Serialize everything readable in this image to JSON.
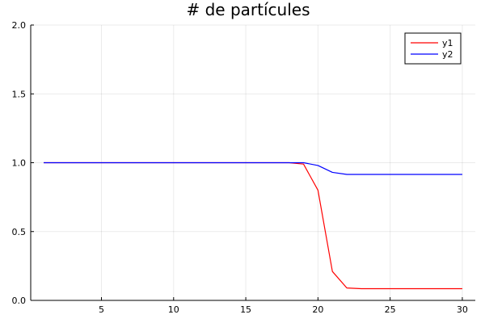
{
  "chart_data": {
    "type": "line",
    "title": "# de partícules",
    "xlabel": "",
    "ylabel": "",
    "xlim": [
      0.1,
      30.9
    ],
    "ylim": [
      0,
      2
    ],
    "xticks": [
      5,
      10,
      15,
      20,
      25,
      30
    ],
    "yticks": [
      0.0,
      0.5,
      1.0,
      1.5,
      2.0
    ],
    "xtick_labels": [
      "5",
      "10",
      "15",
      "20",
      "25",
      "30"
    ],
    "ytick_labels": [
      "0.0",
      "0.5",
      "1.0",
      "1.5",
      "2.0"
    ],
    "grid": true,
    "legend_position": "top-right",
    "x": [
      1,
      2,
      3,
      4,
      5,
      6,
      7,
      8,
      9,
      10,
      11,
      12,
      13,
      14,
      15,
      16,
      17,
      18,
      19,
      20,
      21,
      22,
      23,
      24,
      25,
      26,
      27,
      28,
      29,
      30
    ],
    "series": [
      {
        "name": "y1",
        "color": "#ff0000",
        "values": [
          1,
          1,
          1,
          1,
          1,
          1,
          1,
          1,
          1,
          1,
          1,
          1,
          1,
          1,
          1,
          1,
          1,
          1,
          0.99,
          0.8,
          0.21,
          0.09,
          0.085,
          0.085,
          0.085,
          0.085,
          0.085,
          0.085,
          0.085,
          0.085
        ]
      },
      {
        "name": "y2",
        "color": "#0000ff",
        "values": [
          1,
          1,
          1,
          1,
          1,
          1,
          1,
          1,
          1,
          1,
          1,
          1,
          1,
          1,
          1,
          1,
          1,
          1,
          1.0,
          0.98,
          0.93,
          0.915,
          0.915,
          0.915,
          0.915,
          0.915,
          0.915,
          0.915,
          0.915,
          0.915
        ]
      }
    ]
  }
}
